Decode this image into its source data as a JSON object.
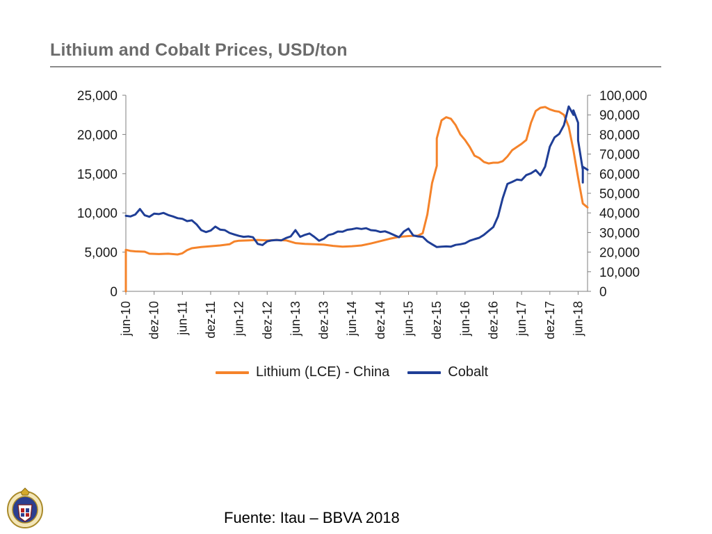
{
  "slide": {
    "title": "Lithium and Cobalt Prices, USD/ton",
    "source": "Fuente: Itau – BBVA 2018",
    "logo_icon": "mining-center-crest-icon"
  },
  "chart_data": {
    "type": "line",
    "title": "Lithium and Cobalt Prices, USD/ton",
    "xlabel": "",
    "ylabel": "",
    "grid": false,
    "legend_position": "bottom",
    "x_tick_labels": [
      "jun-10",
      "dez-10",
      "jun-11",
      "dez-11",
      "jun-12",
      "dez-12",
      "jun-13",
      "dez-13",
      "jun-14",
      "dez-14",
      "jun-15",
      "dez-15",
      "jun-16",
      "dez-16",
      "jun-17",
      "dez-17",
      "jun-18"
    ],
    "x_range_months_from_jun10": [
      0,
      98
    ],
    "y_left": {
      "ticks": [
        0,
        5000,
        10000,
        15000,
        20000,
        25000
      ],
      "tick_labels": [
        "0",
        "5,000",
        "10,000",
        "15,000",
        "20,000",
        "25,000"
      ],
      "ylim": [
        0,
        25000
      ]
    },
    "y_right": {
      "ticks": [
        0,
        10000,
        20000,
        30000,
        40000,
        50000,
        60000,
        70000,
        80000,
        90000,
        100000
      ],
      "tick_labels": [
        "0",
        "10,000",
        "20,000",
        "30,000",
        "40,000",
        "50,000",
        "60,000",
        "70,000",
        "80,000",
        "90,000",
        "100,000"
      ],
      "ylim": [
        0,
        100000
      ]
    },
    "series": [
      {
        "name": "Lithium (LCE) - China",
        "color": "#F5832A",
        "axis": "left",
        "points": [
          [
            "jun-10",
            0
          ],
          [
            "jun-10",
            5300
          ],
          [
            "jul-10",
            5150
          ],
          [
            "ago-10",
            5100
          ],
          [
            "out-10",
            5050
          ],
          [
            "nov-10",
            4800
          ],
          [
            "jan-11",
            4750
          ],
          [
            "mar-11",
            4800
          ],
          [
            "mai-11",
            4700
          ],
          [
            "jun-11",
            4850
          ],
          [
            "jul-11",
            5250
          ],
          [
            "ago-11",
            5500
          ],
          [
            "out-11",
            5650
          ],
          [
            "dez-11",
            5750
          ],
          [
            "fev-12",
            5850
          ],
          [
            "abr-12",
            6000
          ],
          [
            "mai-12",
            6350
          ],
          [
            "jun-12",
            6450
          ],
          [
            "ago-12",
            6500
          ],
          [
            "out-12",
            6550
          ],
          [
            "dez-12",
            6500
          ],
          [
            "fev-13",
            6550
          ],
          [
            "abr-13",
            6500
          ],
          [
            "jun-13",
            6150
          ],
          [
            "ago-13",
            6050
          ],
          [
            "out-13",
            6000
          ],
          [
            "dez-13",
            5950
          ],
          [
            "fev-14",
            5800
          ],
          [
            "abr-14",
            5700
          ],
          [
            "jun-14",
            5750
          ],
          [
            "ago-14",
            5850
          ],
          [
            "out-14",
            6100
          ],
          [
            "dez-14",
            6400
          ],
          [
            "fev-15",
            6700
          ],
          [
            "abr-15",
            6950
          ],
          [
            "jun-15",
            7050
          ],
          [
            "ago-15",
            7100
          ],
          [
            "set-15",
            7400
          ],
          [
            "out-15",
            9800
          ],
          [
            "nov-15",
            13800
          ],
          [
            "dez-15",
            16000
          ],
          [
            "dez-15",
            19500
          ],
          [
            "jan-16",
            21800
          ],
          [
            "fev-16",
            22200
          ],
          [
            "mar-16",
            22000
          ],
          [
            "abr-16",
            21200
          ],
          [
            "mai-16",
            20000
          ],
          [
            "jun-16",
            19300
          ],
          [
            "jul-16",
            18400
          ],
          [
            "ago-16",
            17300
          ],
          [
            "set-16",
            17000
          ],
          [
            "out-16",
            16500
          ],
          [
            "nov-16",
            16300
          ],
          [
            "dez-16",
            16400
          ],
          [
            "jan-17",
            16400
          ],
          [
            "fev-17",
            16600
          ],
          [
            "mar-17",
            17200
          ],
          [
            "abr-17",
            18000
          ],
          [
            "mai-17",
            18400
          ],
          [
            "jun-17",
            18800
          ],
          [
            "jul-17",
            19300
          ],
          [
            "ago-17",
            21500
          ],
          [
            "set-17",
            23000
          ],
          [
            "out-17",
            23400
          ],
          [
            "nov-17",
            23500
          ],
          [
            "dez-17",
            23200
          ],
          [
            "jan-18",
            23000
          ],
          [
            "fev-18",
            22900
          ],
          [
            "mar-18",
            22500
          ],
          [
            "abr-18",
            21000
          ],
          [
            "mai-18",
            18000
          ],
          [
            "jun-18",
            14500
          ],
          [
            "jul-18",
            11200
          ],
          [
            "ago-18",
            10700
          ]
        ]
      },
      {
        "name": "Cobalt",
        "color": "#1F3E96",
        "axis": "right",
        "points": [
          [
            "jun-10",
            38500
          ],
          [
            "jul-10",
            38200
          ],
          [
            "ago-10",
            39200
          ],
          [
            "set-10",
            42000
          ],
          [
            "out-10",
            38800
          ],
          [
            "nov-10",
            38000
          ],
          [
            "dez-10",
            39600
          ],
          [
            "jan-11",
            39400
          ],
          [
            "fev-11",
            40000
          ],
          [
            "mar-11",
            38900
          ],
          [
            "abr-11",
            38200
          ],
          [
            "mai-11",
            37300
          ],
          [
            "jun-11",
            37000
          ],
          [
            "jul-11",
            35800
          ],
          [
            "ago-11",
            36200
          ],
          [
            "set-11",
            34200
          ],
          [
            "out-11",
            31200
          ],
          [
            "nov-11",
            30200
          ],
          [
            "dez-11",
            31000
          ],
          [
            "jan-12",
            33000
          ],
          [
            "fev-12",
            31500
          ],
          [
            "mar-12",
            31200
          ],
          [
            "abr-12",
            29800
          ],
          [
            "mai-12",
            29000
          ],
          [
            "jun-12",
            28300
          ],
          [
            "jul-12",
            27800
          ],
          [
            "ago-12",
            28000
          ],
          [
            "set-12",
            27600
          ],
          [
            "out-12",
            24200
          ],
          [
            "nov-12",
            23600
          ],
          [
            "dez-12",
            25500
          ],
          [
            "jan-13",
            26000
          ],
          [
            "fev-13",
            26200
          ],
          [
            "mar-13",
            26000
          ],
          [
            "abr-13",
            27200
          ],
          [
            "mai-13",
            28000
          ],
          [
            "jun-13",
            31200
          ],
          [
            "jul-13",
            27800
          ],
          [
            "ago-13",
            28800
          ],
          [
            "set-13",
            29500
          ],
          [
            "out-13",
            27800
          ],
          [
            "nov-13",
            25800
          ],
          [
            "dez-13",
            26800
          ],
          [
            "jan-14",
            28700
          ],
          [
            "fev-14",
            29300
          ],
          [
            "mar-14",
            30500
          ],
          [
            "abr-14",
            30400
          ],
          [
            "mai-14",
            31400
          ],
          [
            "jun-14",
            31700
          ],
          [
            "jul-14",
            32200
          ],
          [
            "ago-14",
            31800
          ],
          [
            "set-14",
            32200
          ],
          [
            "out-14",
            31200
          ],
          [
            "nov-14",
            31000
          ],
          [
            "dez-14",
            30300
          ],
          [
            "jan-15",
            30600
          ],
          [
            "fev-15",
            29700
          ],
          [
            "mar-15",
            28600
          ],
          [
            "abr-15",
            27600
          ],
          [
            "mai-15",
            30500
          ],
          [
            "jun-15",
            32000
          ],
          [
            "jul-15",
            28500
          ],
          [
            "ago-15",
            28000
          ],
          [
            "set-15",
            27800
          ],
          [
            "out-15",
            25500
          ],
          [
            "nov-15",
            24000
          ],
          [
            "dez-15",
            22600
          ],
          [
            "jan-16",
            22800
          ],
          [
            "fev-16",
            22900
          ],
          [
            "mar-16",
            22800
          ],
          [
            "abr-16",
            23700
          ],
          [
            "mai-16",
            24000
          ],
          [
            "jun-16",
            24500
          ],
          [
            "jul-16",
            25800
          ],
          [
            "ago-16",
            26600
          ],
          [
            "set-16",
            27300
          ],
          [
            "out-16",
            28800
          ],
          [
            "nov-16",
            30800
          ],
          [
            "dez-16",
            32800
          ],
          [
            "jan-17",
            38200
          ],
          [
            "fev-17",
            47500
          ],
          [
            "mar-17",
            54800
          ],
          [
            "abr-17",
            55800
          ],
          [
            "mai-17",
            57000
          ],
          [
            "jun-17",
            56700
          ],
          [
            "jul-17",
            59300
          ],
          [
            "ago-17",
            60200
          ],
          [
            "set-17",
            61800
          ],
          [
            "out-17",
            59200
          ],
          [
            "nov-17",
            63600
          ],
          [
            "dez-17",
            73800
          ],
          [
            "jan-18",
            78500
          ],
          [
            "fev-18",
            80300
          ],
          [
            "mar-18",
            84800
          ],
          [
            "abr-18",
            94300
          ],
          [
            "mai-18",
            90000
          ],
          [
            "mai-18",
            92300
          ],
          [
            "jun-18",
            86000
          ],
          [
            "jun-18",
            77000
          ],
          [
            "jul-18",
            62000
          ],
          [
            "jul-18",
            55500
          ],
          [
            "jul-18",
            63500
          ],
          [
            "ago-18",
            62000
          ]
        ]
      }
    ]
  }
}
